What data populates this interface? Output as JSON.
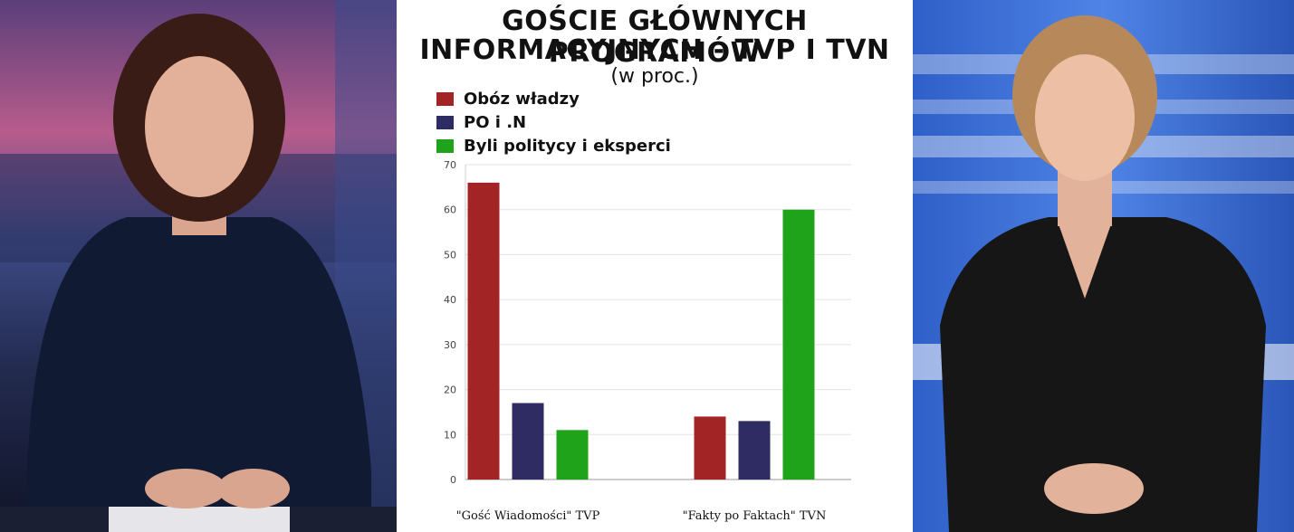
{
  "chart_data": {
    "type": "bar",
    "title": "GOŚCIE GŁÓWNYCH PROGRAMÓW INFORMACYJNYCH - TVP I TVN",
    "title_lines": [
      "GOŚCIE GŁÓWNYCH PROGRAMÓW",
      "INFORMACYJNYCH - TVP I TVN"
    ],
    "subtitle": "(w proc.)",
    "categories": [
      "\"Gość Wiadomości\" TVP",
      "\"Fakty po Faktach\" TVN"
    ],
    "series": [
      {
        "name": "Obóz władzy",
        "color": "#a32424",
        "values": [
          66,
          14
        ]
      },
      {
        "name": "PO i .N",
        "color": "#2e2c63",
        "values": [
          17,
          13
        ]
      },
      {
        "name": "Byli politycy i eksperci",
        "color": "#1fa31a",
        "values": [
          11,
          60
        ]
      }
    ],
    "ylim": [
      0,
      70
    ],
    "yticks": [
      0,
      10,
      20,
      30,
      40,
      50,
      60,
      70
    ],
    "grid": true,
    "legend_position": "top-left"
  },
  "photos": {
    "left": {
      "icon": "news-anchor-photo",
      "background": "#1d2440",
      "accent": "#8a4f8e"
    },
    "right": {
      "icon": "news-anchor-photo",
      "background": "#3c6fd6",
      "accent": "#ffffff"
    }
  }
}
